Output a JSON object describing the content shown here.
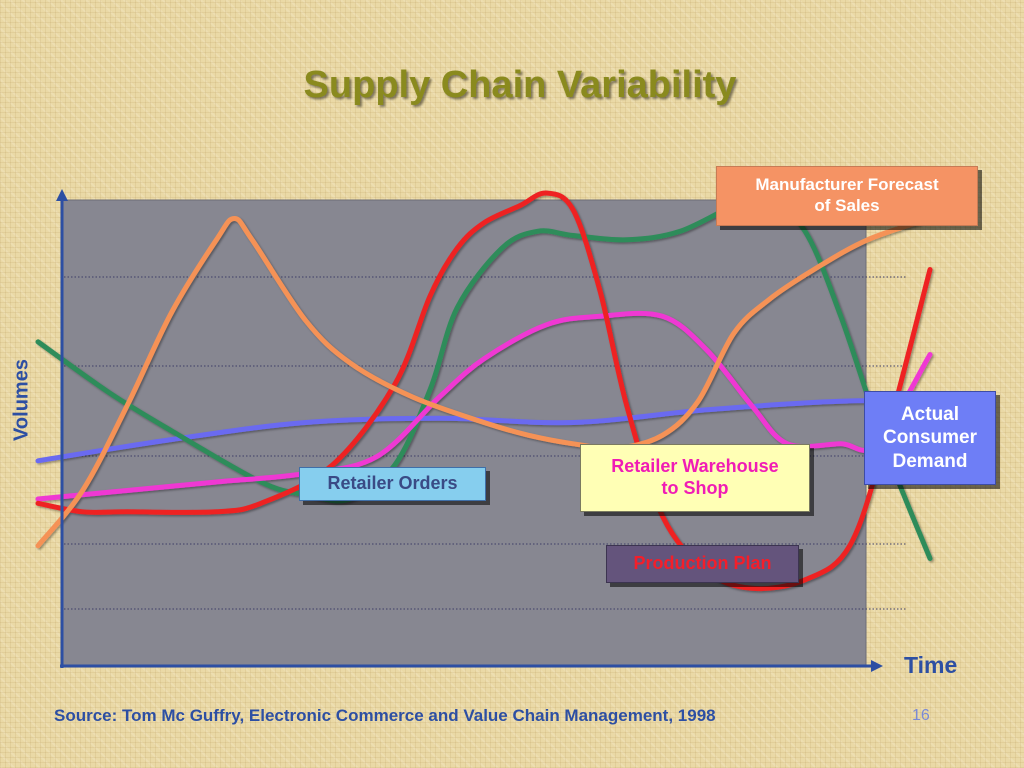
{
  "title": "Supply Chain Variability",
  "source": "Source: Tom Mc Guffry, Electronic Commerce and Value Chain Management, 1998",
  "slide_number": "16",
  "colors": {
    "plot_background": "#878791",
    "axis": "#2d4fa3",
    "title": "#8a8a1e"
  },
  "chart_data": {
    "type": "line",
    "title": "Supply Chain Variability",
    "xlabel": "Time",
    "ylabel": "Volumes",
    "xlim": [
      0,
      100
    ],
    "ylim": [
      0,
      100
    ],
    "grid": "horizontal-dotted",
    "tick_labels": "none",
    "series": [
      {
        "name": "Actual Consumer Demand",
        "color": "#6b6bf0",
        "x": [
          0,
          15,
          30,
          45,
          60,
          75,
          90,
          100
        ],
        "y": [
          37,
          42,
          46,
          47,
          46,
          49,
          51,
          51
        ]
      },
      {
        "name": "Retailer Orders",
        "color": "#2d8c5a",
        "x": [
          0,
          8,
          15,
          25,
          30,
          35,
          40,
          44,
          47,
          52,
          56,
          60,
          66,
          72,
          79,
          82,
          86,
          90,
          95,
          100
        ],
        "y": [
          65,
          53,
          44,
          32,
          29,
          28,
          36,
          54,
          73,
          87,
          91,
          90,
          89,
          91,
          98,
          98,
          91,
          71,
          40,
          14
        ]
      },
      {
        "name": "Retailer Warehouse to Shop",
        "color": "#ef38d3",
        "x": [
          0,
          10,
          20,
          30,
          38,
          45,
          50,
          57,
          63,
          70,
          75,
          80,
          84,
          90,
          94,
          100
        ],
        "y": [
          28,
          30,
          32,
          34,
          38,
          52,
          61,
          69,
          71,
          71,
          63,
          50,
          41,
          41,
          41,
          62
        ]
      },
      {
        "name": "Production Plan",
        "color": "#ee2222",
        "x": [
          0,
          5,
          10,
          20,
          25,
          33,
          40,
          44,
          47,
          50,
          54,
          57,
          60,
          63,
          66,
          70,
          75,
          80,
          86,
          91,
          95,
          100
        ],
        "y": [
          27,
          25,
          25,
          25,
          27,
          36,
          55,
          76,
          87,
          93,
          97,
          100,
          96,
          77,
          50,
          24,
          11,
          7,
          9,
          17,
          42,
          82
        ]
      },
      {
        "name": "Manufacturer Forecast of Sales",
        "color": "#f59257",
        "x": [
          0,
          5,
          10,
          15,
          20,
          22,
          24,
          30,
          35,
          42,
          50,
          55,
          60,
          65,
          70,
          74,
          78,
          82,
          87,
          93,
          100
        ],
        "y": [
          17,
          30,
          50,
          72,
          89,
          94,
          89,
          70,
          60,
          52,
          46,
          43,
          41,
          40,
          43,
          51,
          67,
          75,
          82,
          89,
          94
        ]
      }
    ]
  },
  "labels": {
    "manufacturer_forecast": [
      "Manufacturer Forecast",
      "of Sales"
    ],
    "retailer_orders": "Retailer Orders",
    "retailer_warehouse": [
      "Retailer Warehouse",
      "to Shop"
    ],
    "production_plan": "Production Plan",
    "actual_demand": [
      "Actual",
      "Consumer",
      "Demand"
    ]
  }
}
